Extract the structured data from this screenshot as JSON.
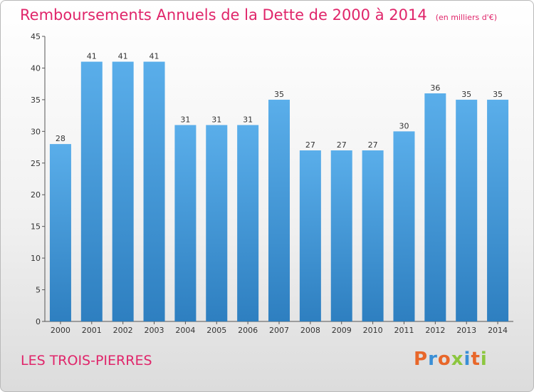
{
  "chart_data": {
    "type": "bar",
    "title": "Remboursements Annuels de la Dette de 2000 à 2014",
    "unit": "(en milliers d'€)",
    "categories": [
      "2000",
      "2001",
      "2002",
      "2003",
      "2004",
      "2005",
      "2006",
      "2007",
      "2008",
      "2009",
      "2010",
      "2011",
      "2012",
      "2013",
      "2014"
    ],
    "values": [
      28,
      41,
      41,
      41,
      31,
      31,
      31,
      35,
      27,
      27,
      27,
      30,
      36,
      35,
      35
    ],
    "ylim": [
      0,
      45
    ],
    "yticks": [
      0,
      5,
      10,
      15,
      20,
      25,
      30,
      35,
      40,
      45
    ],
    "grid": false,
    "bar_color_top": "#5aaeea",
    "bar_color_bottom": "#2e7fc0"
  },
  "commune": "LES TROIS-PIERRES",
  "logo": {
    "text": "Proxiti",
    "letters": [
      {
        "ch": "P",
        "color": "#e8672a"
      },
      {
        "ch": "r",
        "color": "#3a8fd6"
      },
      {
        "ch": "o",
        "color": "#e8672a"
      },
      {
        "ch": "x",
        "color": "#8cc63f"
      },
      {
        "ch": "i",
        "color": "#3a8fd6"
      },
      {
        "ch": "t",
        "color": "#e8672a"
      },
      {
        "ch": "i",
        "color": "#8cc63f"
      }
    ]
  },
  "colors": {
    "title": "#e0256a",
    "axis": "#555555"
  }
}
